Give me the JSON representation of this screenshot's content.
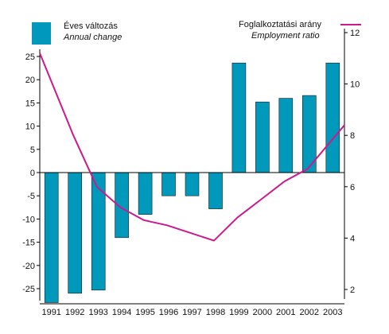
{
  "chart_data": {
    "type": "bar+line",
    "categories": [
      "1991",
      "1992",
      "1993",
      "1994",
      "1995",
      "1996",
      "1997",
      "1998",
      "1999",
      "2000",
      "2001",
      "2002",
      "2003"
    ],
    "series": [
      {
        "name": "Éves változás",
        "name_en": "Annual change",
        "type": "bar",
        "axis": "left",
        "color": "#0099bb",
        "values": [
          -28,
          -26,
          -25.3,
          -14,
          -9,
          -5,
          -5,
          -7.8,
          23.6,
          15.2,
          16,
          16.6,
          23.6
        ]
      },
      {
        "name": "Foglalkoztatási arány",
        "name_en": "Employment ratio",
        "type": "line",
        "axis": "right",
        "color": "#cc1a8c",
        "values": [
          11.2,
          8,
          6,
          5.2,
          4.7,
          4.5,
          4.2,
          3.9,
          4.8,
          5.5,
          6.2,
          6.7,
          8.4
        ]
      }
    ],
    "yleft": {
      "ticks": [
        25,
        20,
        15,
        10,
        5,
        0,
        -5,
        -10,
        -15,
        -20,
        -25
      ],
      "ylim": [
        -28,
        25
      ]
    },
    "yright": {
      "ticks": [
        12,
        10,
        8,
        6,
        4,
        2
      ],
      "ylim": [
        1.8,
        12
      ]
    },
    "legend_placement": "top",
    "grid": false
  }
}
